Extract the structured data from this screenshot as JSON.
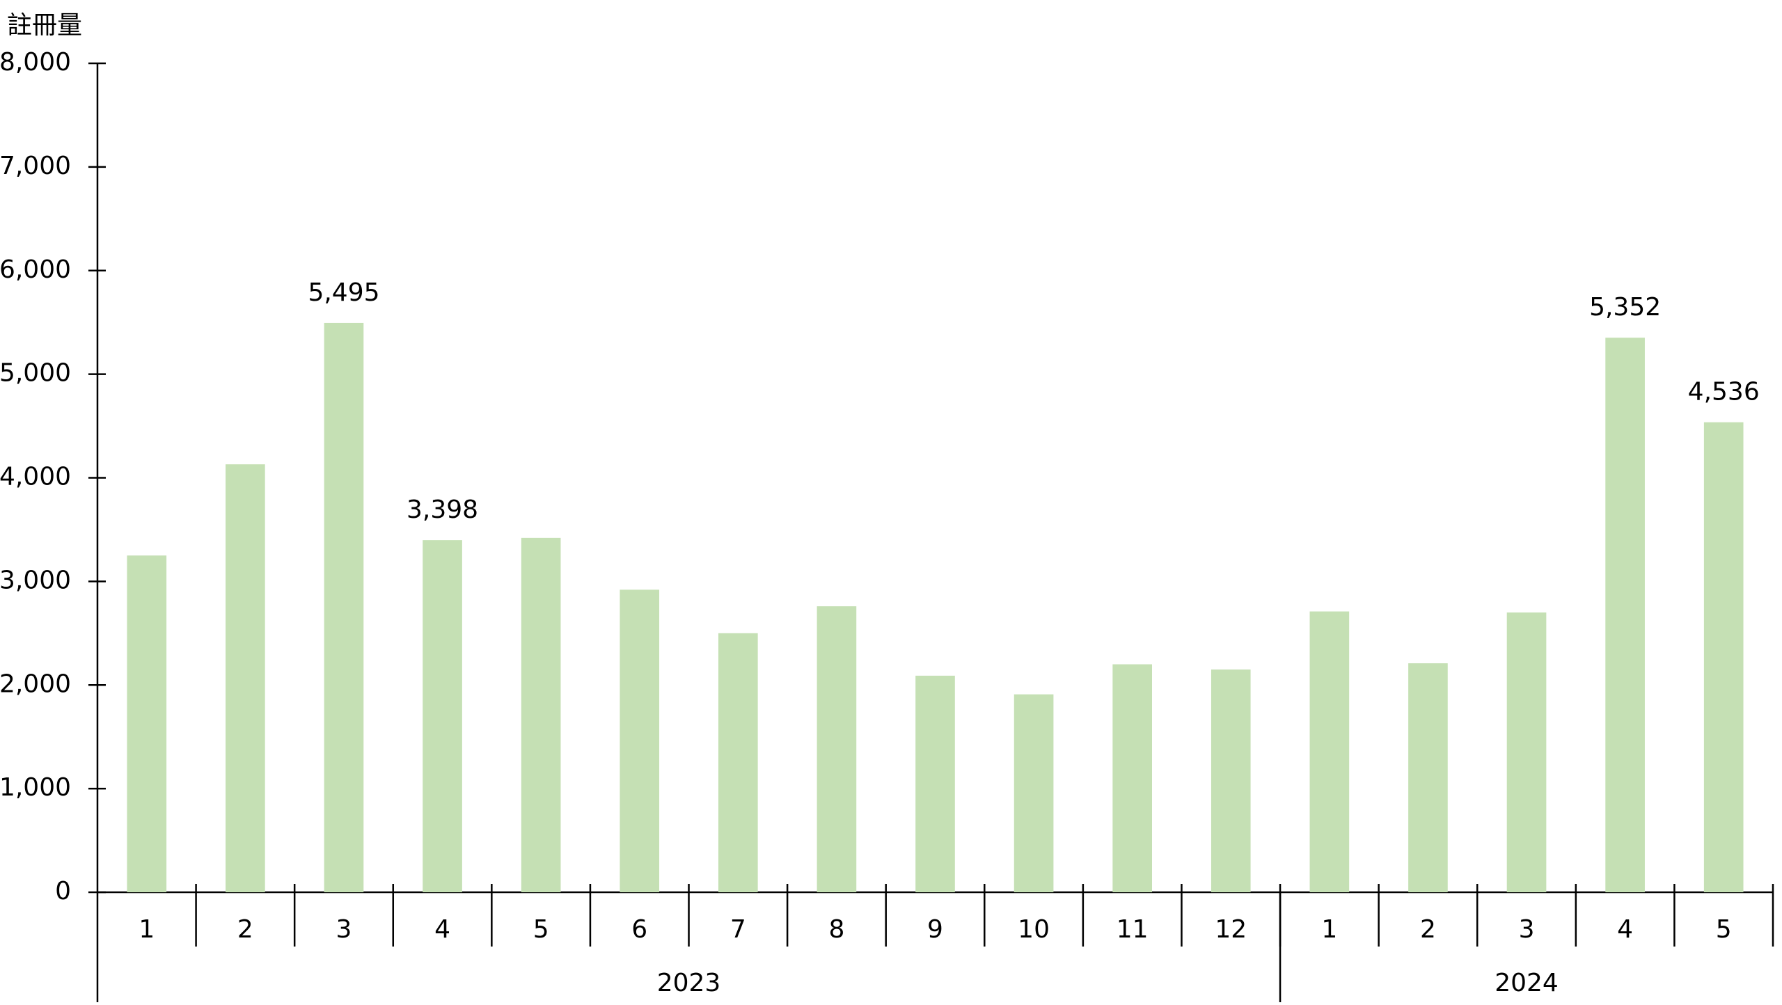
{
  "chart_data": {
    "type": "bar",
    "title": "註冊量",
    "groups": [
      {
        "label": "2023",
        "categories": [
          "1",
          "2",
          "3",
          "4",
          "5",
          "6",
          "7",
          "8",
          "9",
          "10",
          "11",
          "12"
        ]
      },
      {
        "label": "2024",
        "categories": [
          "1",
          "2",
          "3",
          "4",
          "5"
        ]
      }
    ],
    "values": [
      3250,
      4130,
      5495,
      3398,
      3420,
      2920,
      2500,
      2760,
      2090,
      1910,
      2200,
      2150,
      2710,
      2210,
      2700,
      5352,
      4536
    ],
    "value_labels": [
      null,
      null,
      "5,495",
      "3,398",
      null,
      null,
      null,
      null,
      null,
      null,
      null,
      null,
      null,
      null,
      null,
      "5,352",
      "4,536"
    ],
    "color": "#c5e0b4",
    "ylim": [
      0,
      8000
    ],
    "yticks": [
      0,
      {
        "value": 1000,
        "label": "1,000"
      },
      {
        "value": 2000,
        "label": "2,000"
      },
      {
        "value": 3000,
        "label": "3,000"
      },
      {
        "value": 4000,
        "label": "4,000"
      },
      {
        "value": 5000,
        "label": "5,000"
      },
      {
        "value": 6000,
        "label": "6,000"
      },
      {
        "value": 7000,
        "label": "7,000"
      },
      {
        "value": 8000,
        "label": "8,000"
      }
    ],
    "grid": false
  }
}
